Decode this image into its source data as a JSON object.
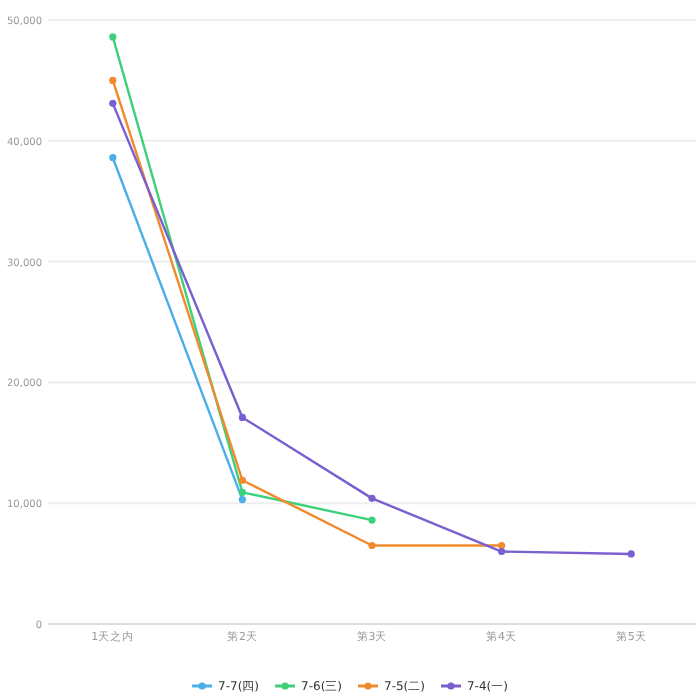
{
  "chart_data": {
    "type": "line",
    "categories": [
      "1天之内",
      "第2天",
      "第3天",
      "第4天",
      "第5天"
    ],
    "series": [
      {
        "name": "7-7(四)",
        "color": "#4aaee8",
        "values": [
          38600,
          10300,
          null,
          null,
          null
        ]
      },
      {
        "name": "7-6(三)",
        "color": "#3ed07a",
        "values": [
          48600,
          10900,
          8600,
          null,
          null
        ]
      },
      {
        "name": "7-5(二)",
        "color": "#f08a2c",
        "values": [
          45000,
          11900,
          6500,
          6500,
          null
        ]
      },
      {
        "name": "7-4(一)",
        "color": "#7a5fd0",
        "values": [
          43100,
          17100,
          10400,
          6000,
          5800
        ]
      }
    ],
    "ylim": [
      0,
      50000
    ],
    "yticks": [
      {
        "value": 0,
        "label": "0"
      },
      {
        "value": 10000,
        "label": "10,000"
      },
      {
        "value": 20000,
        "label": "20,000"
      },
      {
        "value": 30000,
        "label": "30,000"
      },
      {
        "value": 40000,
        "label": "40,000"
      },
      {
        "value": 50000,
        "label": "50,000"
      }
    ],
    "grid": "y",
    "legend": "bottom",
    "marker": "circle",
    "line_style": "solid"
  }
}
